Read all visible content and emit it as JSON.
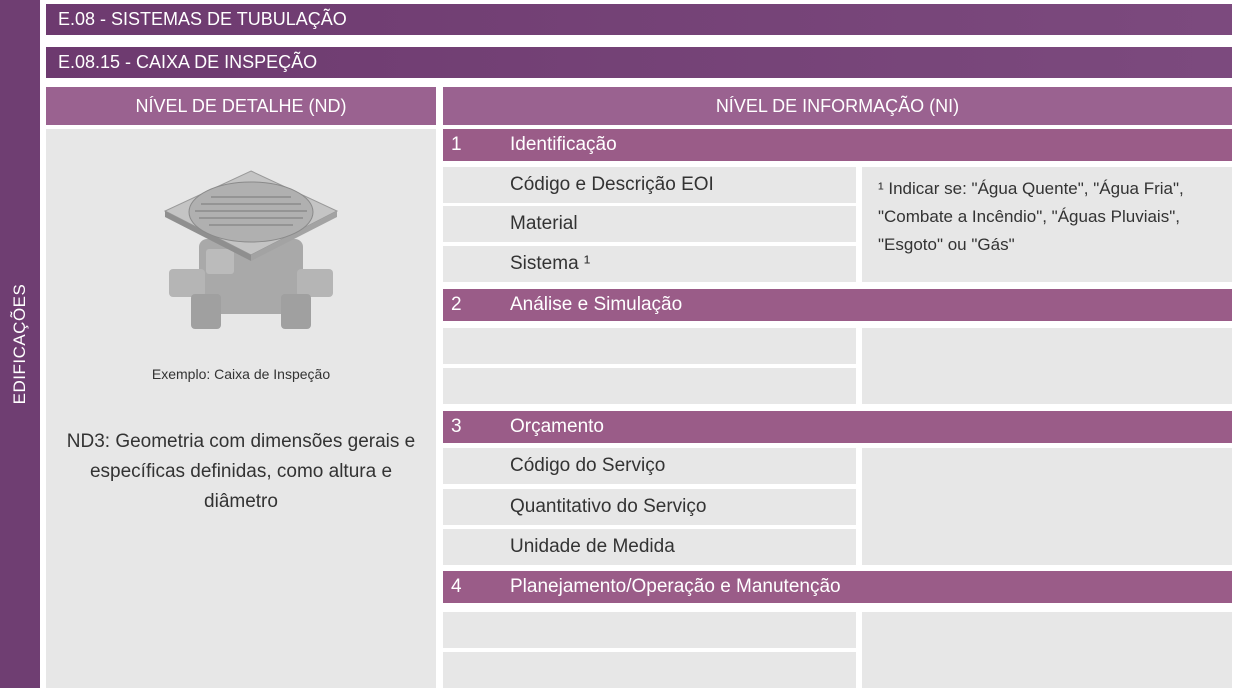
{
  "side_label": "EDIFICAÇÕES",
  "header": {
    "title": "E.08 - SISTEMAS DE TUBULAÇÃO",
    "subtitle": "E.08.15 - CAIXA DE INSPEÇÃO"
  },
  "columns": {
    "left": "NÍVEL DE DETALHE (ND)",
    "right": "NÍVEL DE INFORMAÇÃO (NI)"
  },
  "detail": {
    "caption": "Exemplo: Caixa de Inspeção",
    "description": "ND3: Geometria com dimensões gerais e específicas definidas, como altura e diâmetro"
  },
  "sections": [
    {
      "number": "1",
      "title": "Identificação",
      "items": [
        "Código e Descrição EOI",
        "Material",
        "Sistema ¹"
      ],
      "note": "¹ Indicar se: \"Água Quente\", \"Água Fria\", \"Combate a Incêndio\", \"Águas Pluviais\", \"Esgoto\" ou \"Gás\""
    },
    {
      "number": "2",
      "title": "Análise e Simulação"
    },
    {
      "number": "3",
      "title": "Orçamento",
      "items": [
        "Código do Serviço",
        "Quantitativo do Serviço",
        "Unidade de Medida"
      ]
    },
    {
      "number": "4",
      "title": "Planejamento/Operação e Manutenção"
    }
  ]
}
